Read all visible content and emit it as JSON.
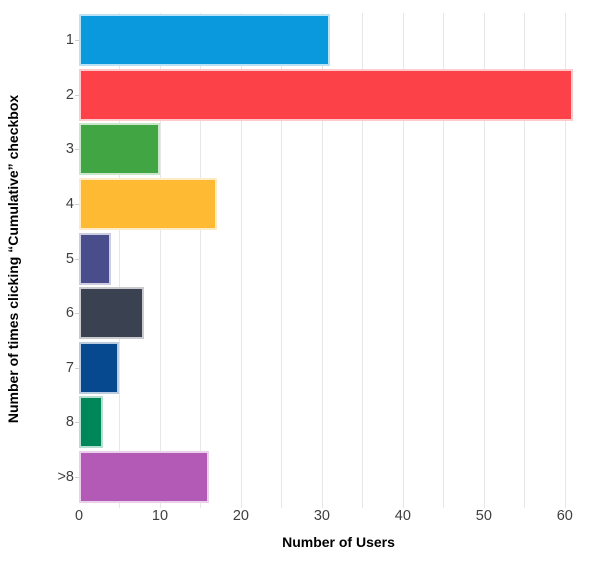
{
  "chart_data": {
    "type": "bar",
    "orientation": "horizontal",
    "title": "",
    "xlabel": "Number of Users",
    "ylabel": "Number of times clicking “Cumulative” checkbox",
    "categories": [
      "1",
      "2",
      "3",
      "4",
      "5",
      "6",
      "7",
      "8",
      ">8"
    ],
    "values": [
      31,
      61,
      10,
      17,
      4,
      8,
      5,
      3,
      16
    ],
    "bar_colors": [
      "#0A99DC",
      "#FC4149",
      "#41A544",
      "#FEBA32",
      "#4A4D8C",
      "#3A4151",
      "#07498F",
      "#008759",
      "#B25AB5"
    ],
    "x_tick_labels": [
      0,
      10,
      20,
      30,
      40,
      50,
      60
    ],
    "x_gridline_step": 5,
    "x_gridline_max": 60,
    "xlim": [
      0,
      64.1
    ],
    "grid_on": true,
    "legend": "none",
    "grid_color": "#E7E7E7",
    "tick_mark_color": "#CFCFCF",
    "tick_label_color": "#3f3f3f",
    "axis_title_color": "#000000",
    "background_color": "#FFFFFF"
  }
}
